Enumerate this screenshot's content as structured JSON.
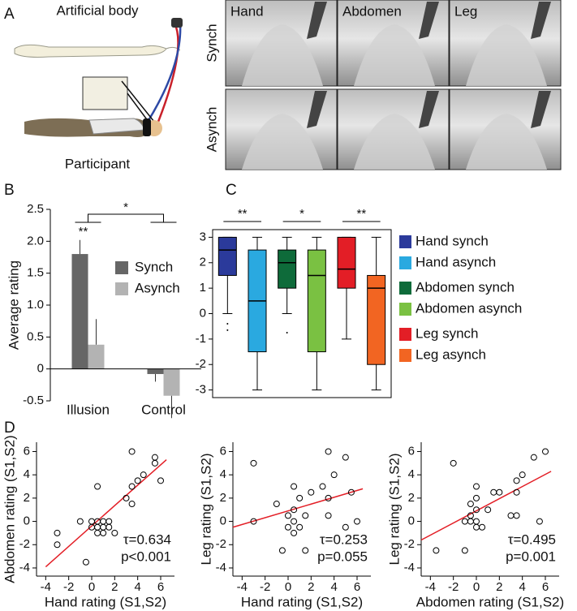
{
  "panel_labels": [
    "A",
    "B",
    "C",
    "D"
  ],
  "panel_a": {
    "top_label": "Artificial body",
    "bottom_label": "Participant",
    "rows": [
      "Synch",
      "Asynch"
    ],
    "columns": [
      "Hand",
      "Abdomen",
      "Leg"
    ]
  },
  "chart_data": [
    {
      "type": "bar",
      "ylabel": "Average rating",
      "categories": [
        "Illusion",
        "Control"
      ],
      "series": [
        {
          "name": "Synch",
          "color": "#666666",
          "values": [
            1.8,
            -0.08
          ],
          "errors": [
            0.22,
            0.12
          ]
        },
        {
          "name": "Asynch",
          "color": "#b3b3b3",
          "values": [
            0.38,
            -0.42
          ],
          "errors": [
            0.4,
            0.35
          ]
        }
      ],
      "ylim": [
        -0.5,
        2.5
      ],
      "yticks": [
        -0.5,
        0,
        0.5,
        {
          "value": 1,
          "label": "1.0"
        },
        1.5,
        {
          "value": 2,
          "label": "2.0"
        },
        2.5
      ],
      "annotations": [
        "**",
        "*"
      ]
    },
    {
      "type": "box",
      "ylim": [
        -3.3,
        3.3
      ],
      "yticks": [
        -3,
        -2,
        -1,
        0,
        1,
        2,
        3
      ],
      "series": [
        {
          "name": "Hand synch",
          "color": "#2b3a9b",
          "min": 0,
          "q1": 1.5,
          "median": 2.5,
          "q3": 3,
          "max": 3,
          "outliers": [
            -0.4,
            -0.65
          ]
        },
        {
          "name": "Hand asynch",
          "color": "#2aa9e0",
          "min": -3,
          "q1": -1.5,
          "median": 0.5,
          "q3": 2.5,
          "max": 3,
          "outliers": []
        },
        {
          "name": "Abdomen synch",
          "color": "#0e6b3a",
          "min": 0,
          "q1": 1,
          "median": 2,
          "q3": 2.5,
          "max": 3,
          "outliers": [
            -0.75
          ]
        },
        {
          "name": "Abdomen asynch",
          "color": "#7ac142",
          "min": -3,
          "q1": -1.5,
          "median": 1.5,
          "q3": 2.5,
          "max": 3,
          "outliers": []
        },
        {
          "name": "Leg synch",
          "color": "#e31e26",
          "min": -1,
          "q1": 1,
          "median": 1.75,
          "q3": 3,
          "max": 3,
          "outliers": []
        },
        {
          "name": "Leg asynch",
          "color": "#f26522",
          "min": -3,
          "q1": -2,
          "median": 1,
          "q3": 1.5,
          "max": 3,
          "outliers": []
        }
      ],
      "annotations": [
        "**",
        "*",
        "**"
      ]
    },
    {
      "type": "scatter",
      "xlabel": "Hand rating (S1,S2)",
      "ylabel": "Abdomen rating (S1,S2)",
      "x": [
        -3,
        -3,
        -1,
        -0.5,
        0,
        0,
        0.5,
        0.5,
        0.5,
        1,
        1,
        1,
        1.5,
        1.5,
        2,
        0.5,
        3,
        3.5,
        3.5,
        3.5,
        4,
        4.5,
        5.5,
        5.5,
        6
      ],
      "values": [
        -1,
        -2,
        0,
        -3.5,
        0,
        -0.5,
        0,
        -0.5,
        -1,
        0,
        -0.5,
        -1,
        0,
        -0.5,
        -1,
        3,
        2,
        1.5,
        3,
        6,
        3.5,
        4,
        5,
        5.5,
        3.5
      ],
      "xlim": [
        -4.8,
        7.2
      ],
      "ylim": [
        -4.7,
        6.8
      ],
      "xticks": [
        -4,
        -2,
        0,
        2,
        4,
        6
      ],
      "yticks": [
        -4,
        -2,
        0,
        2,
        4,
        6
      ],
      "fit": {
        "x": [
          -4,
          6.5
        ],
        "values": [
          -3.9,
          5.3
        ]
      },
      "fit_color": "#e31e26",
      "annotations": [
        "τ=0.634",
        "p<0.001"
      ]
    },
    {
      "type": "scatter",
      "xlabel": "Hand rating (S1,S2)",
      "ylabel": "Leg rating (S1,S2)",
      "x": [
        -3,
        -3,
        -1,
        -0.5,
        0,
        0,
        0.5,
        0.5,
        0.5,
        0.5,
        1,
        1,
        1.5,
        1.5,
        2,
        3,
        3.5,
        3.5,
        3.5,
        4,
        5,
        5,
        5.5,
        6
      ],
      "values": [
        0,
        5,
        1.5,
        -2.5,
        0.5,
        -0.5,
        0,
        1,
        3,
        -1,
        -0.5,
        2,
        -2.5,
        0.5,
        2.5,
        3,
        6,
        2,
        0.5,
        4,
        5.5,
        -0.5,
        2.5,
        0
      ],
      "xlim": [
        -4.8,
        7.2
      ],
      "ylim": [
        -4.7,
        6.8
      ],
      "xticks": [
        -4,
        -2,
        0,
        2,
        4,
        6
      ],
      "yticks": [
        -4,
        -2,
        0,
        2,
        4,
        6
      ],
      "fit": {
        "x": [
          -4.8,
          6.5
        ],
        "values": [
          -0.5,
          2.8
        ]
      },
      "fit_color": "#e31e26",
      "annotations": [
        "τ=0.253",
        "p=0.055"
      ]
    },
    {
      "type": "scatter",
      "xlabel": "Abdomen rating (S1,S2)",
      "ylabel": "Leg rating (S1,S2)",
      "x": [
        -3.5,
        -2,
        -1,
        -1,
        -0.5,
        -0.5,
        0,
        0,
        0,
        0,
        0,
        0.5,
        1,
        1.5,
        2,
        3,
        3.5,
        3.5,
        3.5,
        4,
        5,
        5.5,
        6,
        -0.5
      ],
      "values": [
        -2.5,
        5,
        -2.5,
        0,
        0.5,
        0,
        1,
        0,
        -0.5,
        3,
        2,
        -0.5,
        1,
        2.5,
        2.5,
        0.5,
        0.5,
        2.5,
        3.5,
        4,
        5.5,
        0,
        6,
        1.5
      ],
      "xlim": [
        -4.8,
        7.2
      ],
      "ylim": [
        -4.7,
        6.8
      ],
      "xticks": [
        -4,
        -2,
        0,
        2,
        4,
        6
      ],
      "yticks": [
        -4,
        -2,
        0,
        2,
        4,
        6
      ],
      "fit": {
        "x": [
          -4.8,
          6.5
        ],
        "values": [
          -1.6,
          4.3
        ]
      },
      "fit_color": "#e31e26",
      "annotations": [
        "τ=0.495",
        "p=0.001"
      ]
    }
  ]
}
